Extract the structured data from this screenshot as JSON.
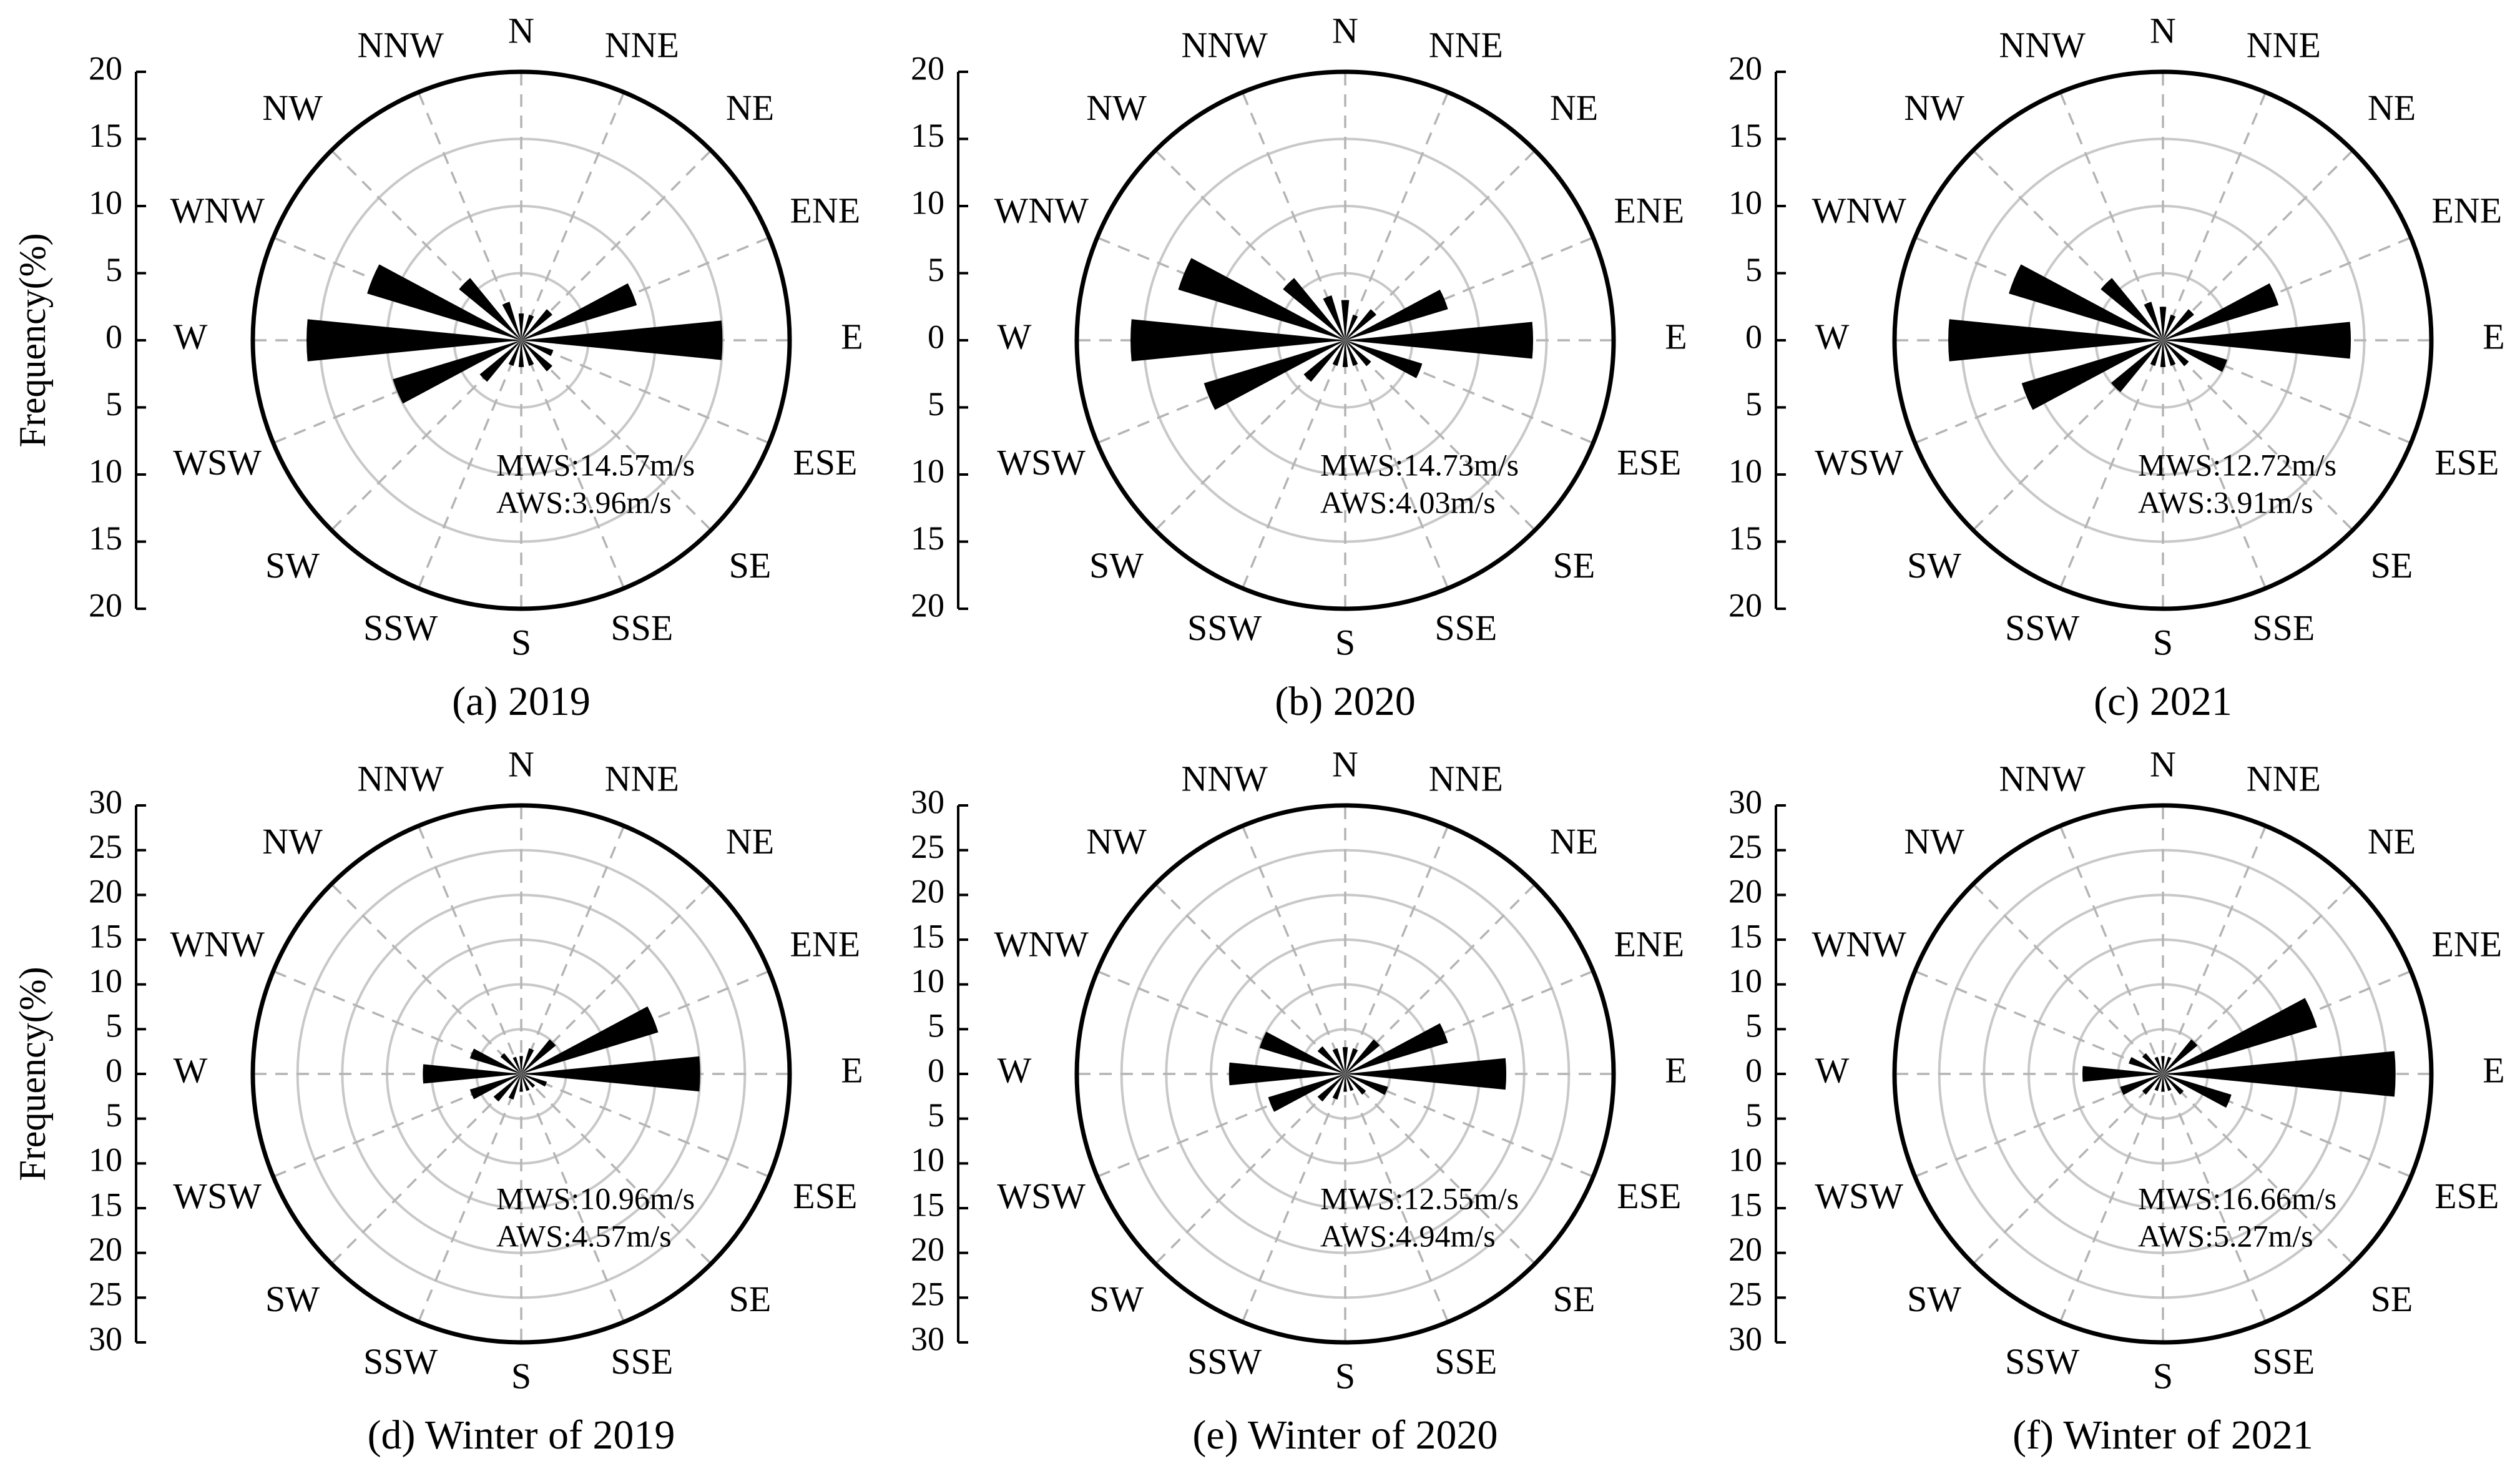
{
  "figure": {
    "ylabel": "Frequency(%)",
    "directions": [
      "N",
      "NNE",
      "NE",
      "ENE",
      "E",
      "ESE",
      "SE",
      "SSE",
      "S",
      "SSW",
      "SW",
      "WSW",
      "W",
      "WNW",
      "NW",
      "NNW"
    ]
  },
  "chart_data": [
    {
      "type": "rose",
      "caption": "(a) 2019",
      "rmax": 20,
      "ticks": [
        20,
        15,
        10,
        5,
        0,
        5,
        10,
        15,
        20
      ],
      "stats": [
        "MWS:14.57m/s",
        "AWS:3.96m/s"
      ],
      "series": [
        {
          "values": [
            2,
            2,
            3,
            9,
            15,
            2.5,
            3,
            2,
            2,
            2,
            4,
            10,
            16,
            12,
            6,
            3
          ]
        }
      ]
    },
    {
      "type": "rose",
      "caption": "(b) 2020",
      "rmax": 20,
      "ticks": [
        20,
        15,
        10,
        5,
        0,
        5,
        10,
        15,
        20
      ],
      "stats": [
        "MWS:14.73m/s",
        "AWS:4.03m/s"
      ],
      "series": [
        {
          "values": [
            3,
            2,
            3,
            8,
            14,
            6,
            2.5,
            2,
            2,
            2,
            4,
            11,
            16,
            13,
            6,
            3.5
          ]
        }
      ]
    },
    {
      "type": "rose",
      "caption": "(c) 2021",
      "rmax": 20,
      "ticks": [
        20,
        15,
        10,
        5,
        0,
        5,
        10,
        15,
        20
      ],
      "stats": [
        "MWS:12.72m/s",
        "AWS:3.91m/s"
      ],
      "series": [
        {
          "values": [
            2.5,
            2,
            3,
            9,
            14,
            5,
            2.5,
            2,
            2,
            2,
            5,
            11,
            16,
            12,
            6,
            3
          ]
        }
      ]
    },
    {
      "type": "rose",
      "caption": "(d) Winter of 2019",
      "rmax": 30,
      "ticks": [
        30,
        25,
        20,
        15,
        10,
        5,
        0,
        5,
        10,
        15,
        20,
        25,
        30
      ],
      "stats": [
        "MWS:10.96m/s",
        "AWS:4.57m/s"
      ],
      "series": [
        {
          "values": [
            2,
            3,
            5,
            16,
            20,
            3,
            2,
            2,
            2,
            3,
            4,
            6,
            11,
            6,
            3,
            2
          ]
        }
      ]
    },
    {
      "type": "rose",
      "caption": "(e) Winter of 2020",
      "rmax": 30,
      "ticks": [
        30,
        25,
        20,
        15,
        10,
        5,
        0,
        5,
        10,
        15,
        20,
        25,
        30
      ],
      "stats": [
        "MWS:12.55m/s",
        "AWS:4.94m/s"
      ],
      "series": [
        {
          "values": [
            3,
            3,
            5,
            12,
            18,
            5,
            3,
            2,
            2,
            3,
            4,
            9,
            13,
            10,
            4,
            3
          ]
        }
      ]
    },
    {
      "type": "rose",
      "caption": "(f) Winter of 2021",
      "rmax": 30,
      "ticks": [
        30,
        25,
        20,
        15,
        10,
        5,
        0,
        5,
        10,
        15,
        20,
        25,
        30
      ],
      "stats": [
        "MWS:16.66m/s",
        "AWS:5.27m/s"
      ],
      "series": [
        {
          "values": [
            2,
            2,
            5,
            18,
            26,
            8,
            3,
            2,
            2,
            2,
            3,
            5,
            9,
            4,
            3,
            2
          ]
        }
      ]
    }
  ]
}
